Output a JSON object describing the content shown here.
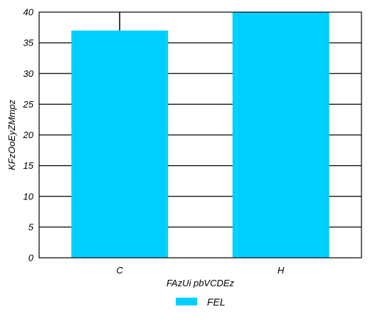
{
  "chart_data": {
    "type": "bar",
    "categories": [
      "C",
      "H"
    ],
    "series": [
      {
        "name": "FEL",
        "values": [
          37,
          40
        ],
        "color": "#00CFFF"
      }
    ],
    "xlabel": "FAzUi pbVCDEz",
    "ylabel": "KFzOoEyZMmpz",
    "ylim": [
      0,
      40
    ],
    "yticks": [
      0,
      5,
      10,
      15,
      20,
      25,
      30,
      35,
      40
    ],
    "grid": "horizontal",
    "legend_position": "bottom-center",
    "error_bars": [
      {
        "category": "C",
        "low": 37,
        "high": 40
      }
    ]
  }
}
